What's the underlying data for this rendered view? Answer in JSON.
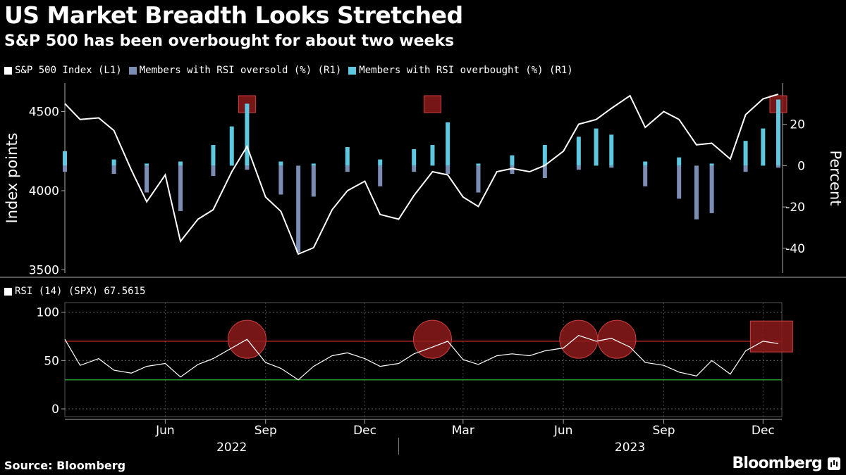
{
  "title": "US Market Breadth Looks Stretched",
  "subtitle": "S&P 500 has been overbought for about two weeks",
  "legend": [
    {
      "label": "S&P 500 Index (L1)",
      "color": "#ffffff"
    },
    {
      "label": "Members with RSI oversold (%) (R1)",
      "color": "#7b8db5"
    },
    {
      "label": "Members with RSI overbought (%) (R1)",
      "color": "#5ec8e0"
    }
  ],
  "rsi_legend": "RSI (14) (SPX) 67.5615",
  "source": "Source: Bloomberg",
  "brand": "Bloomberg",
  "colors": {
    "background": "#000000",
    "highlight": "#8b1a1a",
    "overbought_line": "#e03030",
    "oversold_line": "#3fbf3f"
  },
  "chart_data": [
    {
      "type": "line",
      "title": "S&P 500 Index vs members with RSI oversold / overbought",
      "x_ticks": [
        "Jun",
        "Sep",
        "Dec",
        "Mar",
        "Jun",
        "Sep",
        "Dec"
      ],
      "x_years": [
        "2022",
        "2023"
      ],
      "x_range": [
        "2022-03-01",
        "2023-12-15"
      ],
      "left_axis": {
        "label": "Index points",
        "ticks": [
          3500,
          4000,
          4500
        ],
        "ylim": [
          3480,
          4680
        ]
      },
      "right_axis": {
        "label": "Percent",
        "ticks": [
          "20",
          "0",
          "-20",
          "-40"
        ],
        "ylim": [
          -52,
          40
        ]
      },
      "series": [
        {
          "name": "S&P 500 Index (L1)",
          "axis": "left",
          "type": "line",
          "x": [
            "2022-03-01",
            "2022-03-15",
            "2022-04-01",
            "2022-04-15",
            "2022-05-01",
            "2022-05-15",
            "2022-06-01",
            "2022-06-15",
            "2022-07-01",
            "2022-07-15",
            "2022-08-01",
            "2022-08-15",
            "2022-09-01",
            "2022-09-15",
            "2022-10-01",
            "2022-10-15",
            "2022-11-01",
            "2022-11-15",
            "2022-12-01",
            "2022-12-15",
            "2023-01-01",
            "2023-01-15",
            "2023-02-01",
            "2023-02-15",
            "2023-03-01",
            "2023-03-15",
            "2023-04-01",
            "2023-04-15",
            "2023-05-01",
            "2023-05-15",
            "2023-06-01",
            "2023-06-15",
            "2023-07-01",
            "2023-07-15",
            "2023-08-01",
            "2023-08-15",
            "2023-09-01",
            "2023-09-15",
            "2023-10-01",
            "2023-10-15",
            "2023-11-01",
            "2023-11-15",
            "2023-12-01",
            "2023-12-15"
          ],
          "values": [
            4550,
            4450,
            4460,
            4380,
            4130,
            3930,
            4100,
            3680,
            3820,
            3880,
            4120,
            4280,
            3960,
            3870,
            3600,
            3640,
            3880,
            4000,
            4060,
            3850,
            3820,
            3970,
            4120,
            4100,
            3960,
            3900,
            4120,
            4140,
            4120,
            4160,
            4250,
            4420,
            4450,
            4520,
            4600,
            4400,
            4500,
            4450,
            4290,
            4300,
            4200,
            4480,
            4580,
            4610
          ]
        },
        {
          "name": "Members with RSI oversold (%) (R1)",
          "axis": "right",
          "type": "bar",
          "x": [
            "2022-03-01",
            "2022-04-15",
            "2022-05-15",
            "2022-06-15",
            "2022-07-15",
            "2022-08-15",
            "2022-09-15",
            "2022-10-01",
            "2022-10-15",
            "2022-11-15",
            "2022-12-15",
            "2023-01-15",
            "2023-02-15",
            "2023-03-15",
            "2023-04-15",
            "2023-05-15",
            "2023-06-15",
            "2023-07-15",
            "2023-08-15",
            "2023-09-15",
            "2023-10-01",
            "2023-10-15",
            "2023-11-15",
            "2023-12-15"
          ],
          "values": [
            -3,
            -4,
            -13,
            -22,
            -5,
            -2,
            -14,
            -42,
            -15,
            -3,
            -10,
            -3,
            -4,
            -13,
            -4,
            -6,
            -2,
            -1,
            -10,
            -16,
            -26,
            -23,
            -3,
            -1
          ]
        },
        {
          "name": "Members with RSI overbought (%) (R1)",
          "axis": "right",
          "type": "bar",
          "x": [
            "2022-03-01",
            "2022-04-15",
            "2022-05-15",
            "2022-06-15",
            "2022-07-15",
            "2022-08-01",
            "2022-08-15",
            "2022-09-15",
            "2022-10-15",
            "2022-11-15",
            "2022-12-15",
            "2023-01-15",
            "2023-02-01",
            "2023-02-15",
            "2023-03-15",
            "2023-04-15",
            "2023-05-15",
            "2023-06-15",
            "2023-07-01",
            "2023-07-15",
            "2023-08-15",
            "2023-09-15",
            "2023-10-15",
            "2023-11-15",
            "2023-12-01",
            "2023-12-15"
          ],
          "values": [
            7,
            3,
            1,
            2,
            10,
            19,
            30,
            2,
            1,
            9,
            3,
            8,
            10,
            21,
            1,
            5,
            10,
            14,
            18,
            15,
            2,
            4,
            1,
            12,
            18,
            32
          ]
        }
      ],
      "highlights": [
        "2022-08-15",
        "2023-02-01",
        "2023-12-15"
      ]
    },
    {
      "type": "line",
      "title": "RSI (14) (SPX)",
      "x_range": [
        "2022-03-01",
        "2023-12-15"
      ],
      "y_ticks": [
        0,
        50,
        100
      ],
      "ylim": [
        -8,
        110
      ],
      "reference_lines": [
        {
          "value": 70,
          "color": "#e03030"
        },
        {
          "value": 30,
          "color": "#3fbf3f"
        }
      ],
      "series": [
        {
          "name": "RSI (14) (SPX)",
          "x": [
            "2022-03-01",
            "2022-03-15",
            "2022-04-01",
            "2022-04-15",
            "2022-05-01",
            "2022-05-15",
            "2022-06-01",
            "2022-06-15",
            "2022-07-01",
            "2022-07-15",
            "2022-08-01",
            "2022-08-15",
            "2022-09-01",
            "2022-09-15",
            "2022-10-01",
            "2022-10-15",
            "2022-11-01",
            "2022-11-15",
            "2022-12-01",
            "2022-12-15",
            "2023-01-01",
            "2023-01-15",
            "2023-02-01",
            "2023-02-15",
            "2023-03-01",
            "2023-03-15",
            "2023-04-01",
            "2023-04-15",
            "2023-05-01",
            "2023-05-15",
            "2023-06-01",
            "2023-06-15",
            "2023-07-01",
            "2023-07-15",
            "2023-08-01",
            "2023-08-15",
            "2023-09-01",
            "2023-09-15",
            "2023-10-01",
            "2023-10-15",
            "2023-11-01",
            "2023-11-15",
            "2023-12-01",
            "2023-12-15"
          ],
          "values": [
            72,
            45,
            52,
            40,
            37,
            44,
            47,
            33,
            46,
            52,
            63,
            72,
            48,
            42,
            30,
            44,
            55,
            58,
            52,
            44,
            47,
            57,
            64,
            70,
            51,
            46,
            55,
            57,
            55,
            60,
            63,
            76,
            70,
            73,
            64,
            48,
            45,
            38,
            34,
            50,
            36,
            60,
            70,
            67.5615
          ]
        }
      ],
      "highlights": [
        "2022-08-15",
        "2023-02-01",
        "2023-06-15",
        "2023-07-20",
        "2023-12-01"
      ]
    }
  ]
}
